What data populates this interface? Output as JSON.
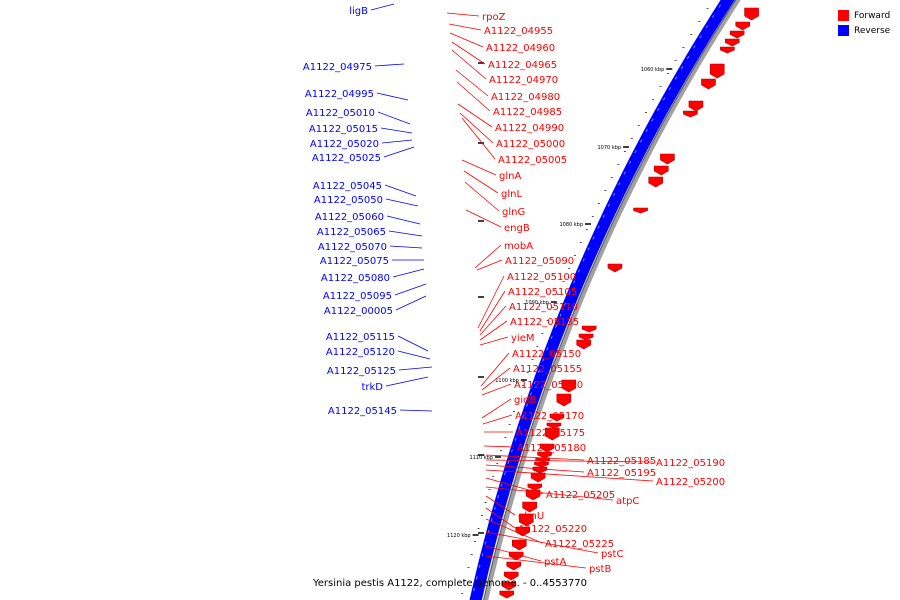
{
  "colors": {
    "forward": "#ff0000",
    "reverse": "#0000ff",
    "backbone": "#a0a0a0"
  },
  "legend": [
    {
      "label": "Forward",
      "color": "#ff0000"
    },
    {
      "label": "Reverse",
      "color": "#0000ff"
    }
  ],
  "caption": "Yersinia pestis A1122, complete genome. - 0..4553770",
  "scale": {
    "unit": "kbp",
    "ticks": [
      "1060 kbp",
      "1070 kbp",
      "1080 kbp",
      "1090 kbp",
      "1100 kbp",
      "1110 kbp",
      "1120 kbp"
    ]
  },
  "reverse_labels": [
    "ligB",
    "A1122_04975",
    "A1122_04995",
    "A1122_05010",
    "A1122_05015",
    "A1122_05020",
    "A1122_05025",
    "A1122_05045",
    "A1122_05050",
    "A1122_05060",
    "A1122_05065",
    "A1122_05070",
    "A1122_05075",
    "A1122_05080",
    "A1122_05095",
    "A1122_00005",
    "A1122_05115",
    "A1122_05120",
    "A1122_05125",
    "trkD",
    "A1122_05145"
  ],
  "forward_labels": [
    "rpoZ",
    "A1122_04955",
    "A1122_04960",
    "A1122_04965",
    "A1122_04970",
    "A1122_04980",
    "A1122_04985",
    "A1122_04990",
    "A1122_05000",
    "A1122_05005",
    "glnA",
    "glnL",
    "glnG",
    "engB",
    "mobA",
    "A1122_05090",
    "A1122_05100",
    "A1122_05105",
    "A1122_05110",
    "A1122_05135",
    "yieM",
    "A1122_05150",
    "A1122_05155",
    "A1122_05160",
    "gidB",
    "A1122_05170",
    "A1122_05175",
    "A1122_05180",
    "A1122_05185",
    "A1122_05190",
    "A1122_05195",
    "A1122_05200",
    "A1122_05205",
    "atpC",
    "glmU",
    "A1122_05220",
    "A1122_05225",
    "pstC",
    "pstA",
    "pstB"
  ]
}
